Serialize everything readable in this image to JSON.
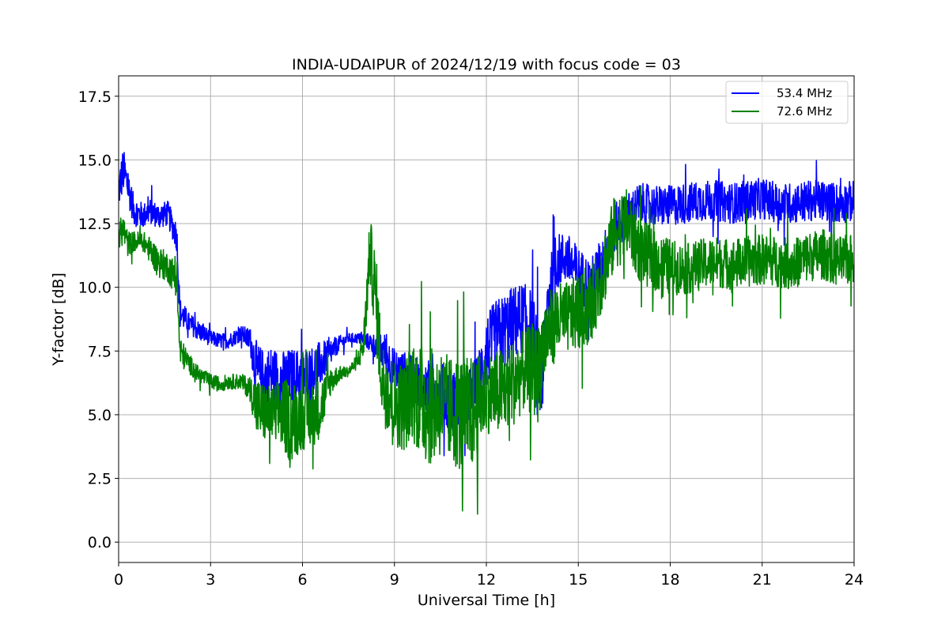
{
  "chart_data": {
    "type": "line",
    "title": "INDIA-UDAIPUR of 2024/12/19 with focus code = 03",
    "xlabel": "Universal Time [h]",
    "ylabel": "Y-factor [dB]",
    "xlim": [
      0,
      24
    ],
    "ylim": [
      -0.8,
      18.3
    ],
    "xticks": [
      0,
      3,
      6,
      9,
      12,
      15,
      18,
      21,
      24
    ],
    "xtick_labels": [
      "0",
      "3",
      "6",
      "9",
      "12",
      "15",
      "18",
      "21",
      "24"
    ],
    "yticks": [
      0.0,
      2.5,
      5.0,
      7.5,
      10.0,
      12.5,
      15.0,
      17.5
    ],
    "ytick_labels": [
      "0.0",
      "2.5",
      "5.0",
      "7.5",
      "10.0",
      "12.5",
      "15.0",
      "17.5"
    ],
    "grid": true,
    "legend_position": "top-right",
    "series": [
      {
        "name": "53.4 MHz",
        "color": "#0000ff",
        "x": [
          0.0,
          0.15,
          0.3,
          0.5,
          0.8,
          1.0,
          1.3,
          1.6,
          1.9,
          2.0,
          2.3,
          2.6,
          3.0,
          3.3,
          3.6,
          4.0,
          4.3,
          4.5,
          4.7,
          5.0,
          5.3,
          5.6,
          6.0,
          6.3,
          6.6,
          6.9,
          7.2,
          7.5,
          7.8,
          8.1,
          8.4,
          8.7,
          9.0,
          9.3,
          9.6,
          9.9,
          10.2,
          10.5,
          10.8,
          11.1,
          11.4,
          11.7,
          12.0,
          12.3,
          12.6,
          12.9,
          13.2,
          13.5,
          13.7,
          13.8,
          14.0,
          14.3,
          14.6,
          15.0,
          15.4,
          15.8,
          16.2,
          16.6,
          17.0,
          17.5,
          18.0,
          18.5,
          19.0,
          19.5,
          20.0,
          20.5,
          21.0,
          21.5,
          22.0,
          22.5,
          23.0,
          23.5,
          24.0
        ],
        "y": [
          13.8,
          14.6,
          14.0,
          13.0,
          12.8,
          13.0,
          12.8,
          12.9,
          12.0,
          9.0,
          8.6,
          8.3,
          8.0,
          7.9,
          7.9,
          8.2,
          7.9,
          6.6,
          6.4,
          6.6,
          6.3,
          6.5,
          6.5,
          6.7,
          7.0,
          7.4,
          7.8,
          8.0,
          8.0,
          7.9,
          7.7,
          7.4,
          6.7,
          6.6,
          6.4,
          6.0,
          5.8,
          6.0,
          5.5,
          5.5,
          5.8,
          6.0,
          7.5,
          8.0,
          8.3,
          8.6,
          8.8,
          8.4,
          6.5,
          6.0,
          9.5,
          11.0,
          11.2,
          10.5,
          10.0,
          11.0,
          12.3,
          12.8,
          13.3,
          13.2,
          13.2,
          13.3,
          13.4,
          13.4,
          13.3,
          13.4,
          13.5,
          13.3,
          13.3,
          13.4,
          13.4,
          13.3,
          13.4
        ],
        "noise": [
          0.8,
          0.9,
          0.7,
          0.6,
          0.5,
          0.5,
          0.5,
          0.5,
          0.6,
          0.6,
          0.4,
          0.4,
          0.3,
          0.3,
          0.3,
          0.3,
          0.5,
          1.3,
          1.2,
          1.1,
          1.2,
          1.1,
          1.1,
          1.0,
          0.9,
          0.5,
          0.3,
          0.2,
          0.2,
          0.3,
          0.5,
          0.8,
          0.9,
          0.9,
          0.9,
          1.1,
          1.2,
          1.2,
          1.3,
          1.2,
          1.2,
          1.3,
          1.4,
          1.5,
          1.5,
          1.5,
          1.4,
          1.5,
          2.0,
          1.5,
          1.4,
          1.1,
          1.0,
          1.1,
          1.1,
          1.1,
          1.0,
          0.9,
          0.8,
          0.8,
          0.8,
          0.8,
          0.8,
          0.8,
          0.8,
          0.8,
          0.8,
          0.8,
          0.8,
          0.8,
          0.8,
          0.8,
          0.8
        ]
      },
      {
        "name": "72.6 MHz",
        "color": "#008000",
        "x": [
          0.0,
          0.15,
          0.3,
          0.5,
          0.8,
          1.0,
          1.3,
          1.6,
          1.9,
          2.0,
          2.3,
          2.6,
          3.0,
          3.3,
          3.6,
          4.0,
          4.3,
          4.5,
          4.7,
          5.0,
          5.3,
          5.6,
          6.0,
          6.3,
          6.6,
          6.9,
          7.2,
          7.5,
          7.8,
          8.0,
          8.2,
          8.4,
          8.6,
          9.0,
          9.3,
          9.6,
          9.9,
          10.2,
          10.5,
          10.8,
          11.1,
          11.4,
          11.7,
          12.0,
          12.3,
          12.6,
          12.9,
          13.2,
          13.5,
          13.7,
          13.8,
          14.0,
          14.3,
          14.6,
          15.0,
          15.4,
          15.8,
          16.2,
          16.6,
          17.0,
          17.5,
          18.0,
          18.5,
          19.0,
          19.5,
          20.0,
          20.5,
          21.0,
          21.5,
          22.0,
          22.5,
          23.0,
          23.5,
          24.0
        ],
        "y": [
          12.0,
          12.3,
          11.7,
          11.8,
          11.8,
          11.5,
          11.0,
          10.8,
          10.3,
          7.5,
          7.0,
          6.6,
          6.3,
          6.2,
          6.3,
          6.3,
          6.0,
          5.3,
          5.1,
          5.0,
          5.1,
          4.7,
          5.0,
          5.0,
          5.3,
          6.3,
          6.6,
          6.7,
          7.1,
          7.8,
          11.5,
          9.5,
          6.3,
          5.5,
          5.3,
          6.0,
          5.5,
          5.3,
          5.5,
          5.2,
          5.1,
          4.9,
          5.3,
          5.9,
          5.8,
          6.0,
          6.3,
          6.7,
          6.8,
          6.6,
          7.5,
          8.2,
          8.7,
          8.8,
          9.0,
          9.2,
          10.6,
          12.2,
          12.5,
          11.5,
          11.0,
          10.8,
          10.7,
          10.9,
          11.0,
          10.9,
          11.0,
          11.1,
          11.0,
          10.9,
          11.2,
          11.3,
          11.0,
          11.1
        ],
        "noise": [
          0.6,
          0.6,
          0.5,
          0.4,
          0.4,
          0.5,
          0.6,
          0.6,
          0.7,
          0.6,
          0.4,
          0.3,
          0.3,
          0.3,
          0.3,
          0.3,
          0.5,
          1.2,
          1.2,
          1.1,
          1.4,
          1.6,
          1.4,
          1.3,
          1.2,
          0.6,
          0.3,
          0.2,
          0.3,
          0.8,
          1.3,
          1.8,
          1.6,
          1.7,
          1.8,
          2.0,
          2.4,
          2.3,
          2.2,
          2.1,
          2.3,
          2.4,
          2.0,
          1.6,
          1.7,
          1.7,
          1.7,
          1.6,
          1.8,
          2.0,
          1.8,
          1.6,
          1.5,
          1.4,
          1.5,
          1.4,
          1.5,
          1.5,
          1.4,
          1.3,
          1.2,
          1.1,
          1.0,
          1.0,
          1.0,
          1.0,
          1.0,
          1.0,
          1.0,
          1.0,
          1.0,
          1.0,
          1.0,
          1.0
        ]
      }
    ]
  }
}
